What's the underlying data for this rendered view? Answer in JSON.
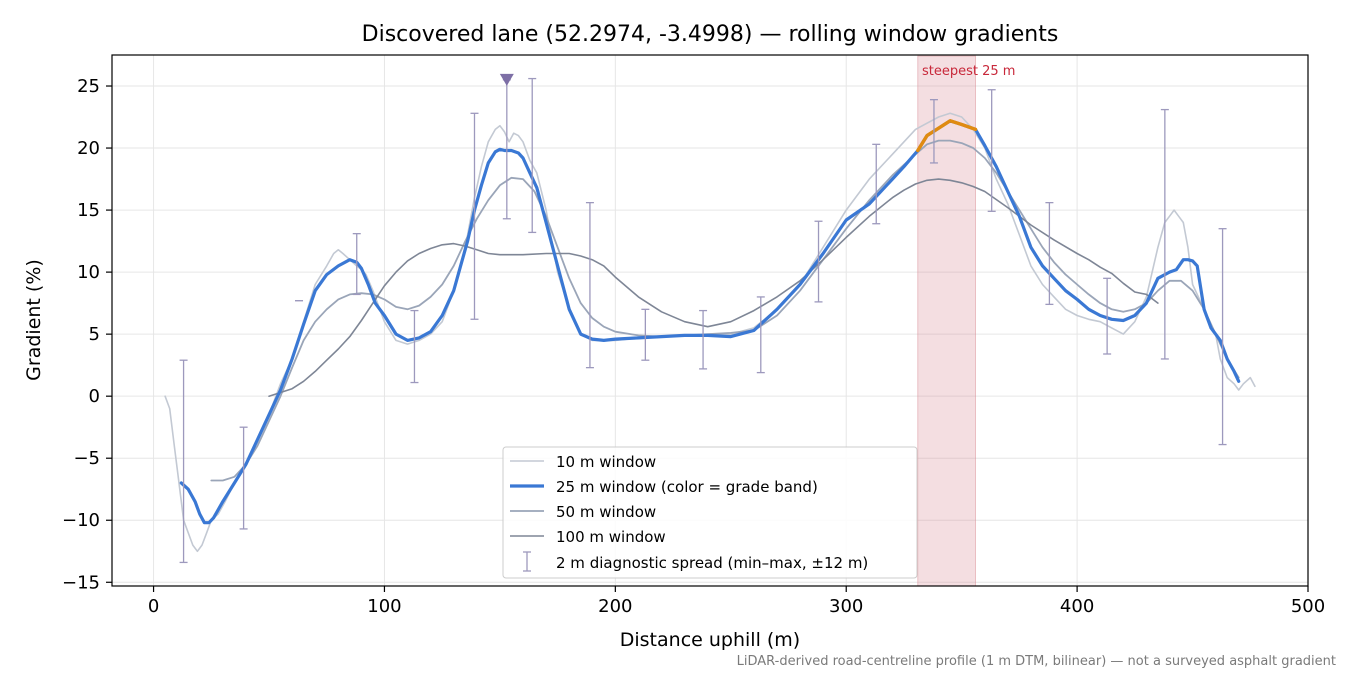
{
  "chart_data": {
    "type": "line",
    "title": "Discovered lane (52.2974, -3.4998) — rolling window gradients",
    "xlabel": "Distance uphill (m)",
    "ylabel": "Gradient (%)",
    "xlim": [
      -18,
      500
    ],
    "ylim": [
      -15.3,
      27.5
    ],
    "xticks": [
      0,
      100,
      200,
      300,
      400,
      500
    ],
    "yticks": [
      -15,
      -10,
      -5,
      0,
      5,
      10,
      15,
      20,
      25
    ],
    "xtick_labels": [
      "0",
      "100",
      "200",
      "300",
      "400",
      "500"
    ],
    "ytick_labels": [
      "−15",
      "−10",
      "−5",
      "0",
      "5",
      "10",
      "15",
      "20",
      "25"
    ],
    "grid": true,
    "legend_position": "lower center",
    "footnote": "LiDAR-derived road-centreline profile (1 m DTM, bilinear) — not a surveyed asphalt gradient",
    "steepest": {
      "label": "steepest 25 m",
      "x_start": 331,
      "x_end": 356,
      "color": "#d98a93"
    },
    "peak_marker": {
      "x": 153,
      "y": 25.5,
      "color": "#7d6fa6"
    },
    "colors": {
      "win10": "#c3c9d3",
      "win25": "#3a78d4",
      "win50": "#9aa5b8",
      "win100": "#7e8696",
      "steep_segment": "#e08b10",
      "diag": "#9d99bd"
    },
    "series": [
      {
        "name": "10 m window",
        "key": "win10",
        "x": [
          5,
          7,
          9,
          11,
          13,
          15,
          17,
          19,
          21,
          23,
          25,
          28,
          31,
          35,
          40,
          45,
          50,
          55,
          60,
          65,
          70,
          75,
          78,
          80,
          82,
          85,
          88,
          90,
          92,
          95,
          98,
          100,
          105,
          110,
          115,
          120,
          125,
          130,
          133,
          136,
          139,
          142,
          145,
          148,
          150,
          152,
          154,
          156,
          158,
          160,
          163,
          166,
          170,
          175,
          180,
          185,
          190,
          195,
          200,
          210,
          220,
          230,
          240,
          250,
          260,
          270,
          280,
          290,
          300,
          310,
          320,
          330,
          335,
          340,
          345,
          350,
          355,
          360,
          365,
          370,
          375,
          380,
          385,
          390,
          395,
          400,
          405,
          410,
          415,
          420,
          425,
          430,
          435,
          438,
          440,
          442,
          444,
          446,
          448,
          450,
          455,
          460,
          462,
          465,
          468,
          470,
          472,
          475,
          477
        ],
        "y": [
          0,
          -1,
          -4,
          -7,
          -10,
          -11,
          -12,
          -12.5,
          -12,
          -11,
          -10,
          -9.5,
          -8.5,
          -7,
          -5.5,
          -3.5,
          -1.5,
          1,
          3,
          6,
          9,
          10.5,
          11.5,
          11.8,
          11.5,
          11,
          10.5,
          10.2,
          9.8,
          8.5,
          7,
          6,
          4.5,
          4.2,
          4.5,
          5,
          6,
          8.5,
          10.5,
          13,
          16,
          18.5,
          20.5,
          21.5,
          21.8,
          21.3,
          20.5,
          21.2,
          21,
          20.5,
          19,
          18,
          15,
          10,
          7,
          5,
          4.5,
          4.5,
          4.5,
          4.7,
          4.8,
          4.9,
          4.9,
          5,
          5.5,
          7,
          9,
          12,
          15,
          17.5,
          19.5,
          21.5,
          22,
          22.5,
          22.8,
          22.5,
          21.5,
          20,
          17.5,
          15.5,
          13,
          10.5,
          9,
          8,
          7,
          6.5,
          6.2,
          6,
          5.5,
          5,
          6,
          8,
          12,
          14,
          14.5,
          15,
          14.5,
          14,
          12,
          9,
          7,
          5,
          3,
          1.5,
          1,
          0.5,
          1,
          1.5,
          0.8
        ]
      },
      {
        "name": "25 m window (color = grade band)",
        "key": "win25",
        "x": [
          12,
          15,
          18,
          20,
          22,
          24,
          26,
          30,
          35,
          40,
          45,
          50,
          55,
          60,
          65,
          70,
          75,
          80,
          85,
          88,
          90,
          93,
          96,
          100,
          105,
          110,
          115,
          120,
          125,
          130,
          133,
          136,
          139,
          142,
          145,
          148,
          150,
          152,
          155,
          158,
          160,
          163,
          166,
          170,
          175,
          180,
          185,
          190,
          195,
          200,
          210,
          220,
          230,
          240,
          250,
          260,
          270,
          280,
          290,
          300,
          310,
          320,
          325,
          331,
          335,
          340,
          345,
          350,
          356,
          360,
          365,
          370,
          375,
          380,
          385,
          390,
          395,
          400,
          405,
          410,
          415,
          420,
          425,
          430,
          435,
          440,
          443,
          446,
          448,
          450,
          452,
          455,
          458,
          462,
          465,
          468,
          470
        ],
        "y": [
          -7,
          -7.5,
          -8.5,
          -9.5,
          -10.2,
          -10.2,
          -9.8,
          -8.5,
          -7,
          -5.5,
          -3.5,
          -1.5,
          0.5,
          3,
          5.8,
          8.5,
          9.8,
          10.5,
          11,
          10.8,
          10.3,
          9,
          7.5,
          6.5,
          5,
          4.5,
          4.7,
          5.2,
          6.5,
          8.5,
          10.5,
          12.5,
          15,
          17,
          18.8,
          19.7,
          19.9,
          19.8,
          19.8,
          19.6,
          19.2,
          18,
          16.8,
          14,
          10.5,
          7,
          5,
          4.6,
          4.5,
          4.6,
          4.7,
          4.8,
          4.9,
          4.9,
          4.8,
          5.3,
          7,
          9,
          11.5,
          14.2,
          15.5,
          17.5,
          18.5,
          19.8,
          21,
          21.6,
          22.2,
          21.9,
          21.5,
          20.2,
          18.5,
          16.5,
          14.5,
          12,
          10.5,
          9.5,
          8.5,
          7.8,
          7,
          6.5,
          6.2,
          6.1,
          6.5,
          7.5,
          9.5,
          10,
          10.2,
          11,
          11,
          10.9,
          10.5,
          7,
          5.5,
          4.5,
          3,
          2,
          1.2
        ]
      },
      {
        "name": "50 m window",
        "key": "win50",
        "x": [
          25,
          30,
          35,
          40,
          45,
          50,
          55,
          60,
          65,
          70,
          75,
          80,
          85,
          90,
          95,
          100,
          105,
          110,
          115,
          120,
          125,
          130,
          135,
          140,
          145,
          150,
          155,
          160,
          165,
          170,
          175,
          180,
          185,
          190,
          195,
          200,
          210,
          220,
          230,
          240,
          250,
          260,
          270,
          280,
          290,
          300,
          310,
          320,
          330,
          335,
          340,
          345,
          350,
          355,
          360,
          365,
          370,
          375,
          380,
          385,
          390,
          395,
          400,
          405,
          410,
          415,
          420,
          425,
          430,
          435,
          440,
          445,
          450,
          455,
          460,
          465,
          470
        ],
        "y": [
          -6.8,
          -6.8,
          -6.5,
          -5.5,
          -4,
          -2,
          0,
          2.3,
          4.5,
          6,
          7,
          7.8,
          8.2,
          8.3,
          8.2,
          7.8,
          7.2,
          7,
          7.3,
          8,
          9,
          10.5,
          12.5,
          14.3,
          15.8,
          17,
          17.6,
          17.5,
          16.5,
          14.5,
          12,
          9.5,
          7.5,
          6.3,
          5.6,
          5.2,
          4.9,
          4.8,
          4.9,
          5,
          5.1,
          5.3,
          6.5,
          8.5,
          11,
          13.5,
          15.8,
          17.8,
          19.5,
          20.3,
          20.6,
          20.6,
          20.4,
          20,
          19.2,
          18,
          16.5,
          15,
          13.5,
          12,
          10.8,
          9.8,
          9,
          8.2,
          7.5,
          7,
          6.8,
          7,
          7.5,
          8.5,
          9.3,
          9.3,
          8.5,
          7,
          5,
          3,
          1.5
        ]
      },
      {
        "name": "100 m window",
        "key": "win100",
        "x": [
          50,
          55,
          60,
          65,
          70,
          75,
          80,
          85,
          90,
          95,
          100,
          105,
          110,
          115,
          120,
          125,
          130,
          135,
          140,
          145,
          150,
          160,
          170,
          180,
          185,
          190,
          195,
          200,
          210,
          220,
          230,
          240,
          250,
          260,
          270,
          280,
          290,
          300,
          310,
          320,
          325,
          330,
          335,
          340,
          345,
          350,
          355,
          360,
          370,
          380,
          390,
          400,
          405,
          410,
          415,
          420,
          425,
          430,
          435
        ],
        "y": [
          0,
          0.3,
          0.6,
          1.2,
          2,
          2.9,
          3.8,
          4.8,
          6.1,
          7.5,
          8.9,
          10,
          10.9,
          11.5,
          11.9,
          12.2,
          12.3,
          12.1,
          11.8,
          11.5,
          11.4,
          11.4,
          11.5,
          11.5,
          11.3,
          11,
          10.5,
          9.6,
          8,
          6.8,
          6,
          5.6,
          6,
          6.9,
          8,
          9.3,
          11,
          12.8,
          14.5,
          16,
          16.6,
          17.1,
          17.4,
          17.5,
          17.4,
          17.2,
          16.9,
          16.5,
          15.2,
          13.8,
          12.6,
          11.5,
          11,
          10.4,
          9.9,
          9.1,
          8.4,
          8.2,
          7.5
        ]
      }
    ],
    "diagnostic_spread": {
      "name": "2 m diagnostic spread (min–max, ±12 m)",
      "key": "diag",
      "points": [
        {
          "x": 13,
          "min": -13.4,
          "max": 2.9
        },
        {
          "x": 39,
          "min": -10.7,
          "max": -2.5
        },
        {
          "x": 63,
          "min": 7.7,
          "max": 7.7
        },
        {
          "x": 88,
          "min": 8.2,
          "max": 13.1
        },
        {
          "x": 113,
          "min": 1.1,
          "max": 6.9
        },
        {
          "x": 139,
          "min": 6.2,
          "max": 22.8
        },
        {
          "x": 153,
          "min": 14.3,
          "max": 25.5
        },
        {
          "x": 164,
          "min": 13.2,
          "max": 25.6
        },
        {
          "x": 189,
          "min": 2.3,
          "max": 15.6
        },
        {
          "x": 213,
          "min": 2.9,
          "max": 7
        },
        {
          "x": 238,
          "min": 2.2,
          "max": 6.9
        },
        {
          "x": 263,
          "min": 1.9,
          "max": 8
        },
        {
          "x": 288,
          "min": 7.6,
          "max": 14.1
        },
        {
          "x": 313,
          "min": 13.9,
          "max": 20.3
        },
        {
          "x": 338,
          "min": 18.8,
          "max": 23.9
        },
        {
          "x": 363,
          "min": 14.9,
          "max": 24.7
        },
        {
          "x": 388,
          "min": 7.4,
          "max": 15.6
        },
        {
          "x": 413,
          "min": 3.4,
          "max": 9.5
        },
        {
          "x": 438,
          "min": 3,
          "max": 23.1
        },
        {
          "x": 463,
          "min": -3.9,
          "max": 13.5
        }
      ]
    }
  }
}
